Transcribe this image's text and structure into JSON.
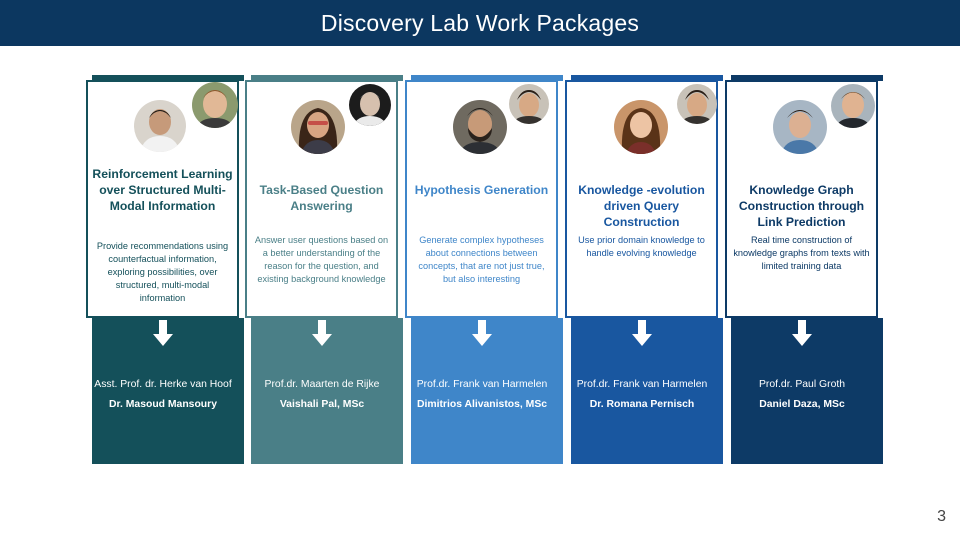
{
  "title": "Discovery Lab Work Packages",
  "page_number": "3",
  "colors": {
    "header": "#0c3760",
    "col1": "#14505a",
    "col2": "#4a7f87",
    "col3": "#3f86c9",
    "col4": "#1957a0",
    "col5": "#0d3a66"
  },
  "packages": [
    {
      "title": "Reinforcement Learning over Structured Multi-Modal Information",
      "description": "Provide recommendations using counterfactual information, exploring possibilities, over structured, multi-modal information",
      "supervisor": "Asst. Prof. dr. Herke van Hoof",
      "researcher": "Dr. Masoud Mansoury"
    },
    {
      "title": "Task-Based Question Answering",
      "description": "Answer user questions based on a better understanding of the reason for the question, and existing background knowledge",
      "supervisor": "Prof.dr. Maarten de Rijke",
      "researcher": "Vaishali Pal, MSc"
    },
    {
      "title": "Hypothesis Generation",
      "description": "Generate complex hypotheses about connections between concepts, that are not just true, but also interesting",
      "supervisor": "Prof.dr. Frank van Harmelen",
      "researcher": "Dimitrios Alivanistos, MSc"
    },
    {
      "title": "Knowledge -evolution driven Query Construction",
      "description": "Use prior domain knowledge to handle evolving knowledge",
      "supervisor": "Prof.dr. Frank van Harmelen",
      "researcher": "Dr. Romana Pernisch"
    },
    {
      "title": "Knowledge Graph Construction through Link Prediction",
      "description": "Real time construction of knowledge graphs from texts with limited training data",
      "supervisor": "Prof.dr. Paul Groth",
      "researcher": "Daniel Daza, MSc"
    }
  ]
}
